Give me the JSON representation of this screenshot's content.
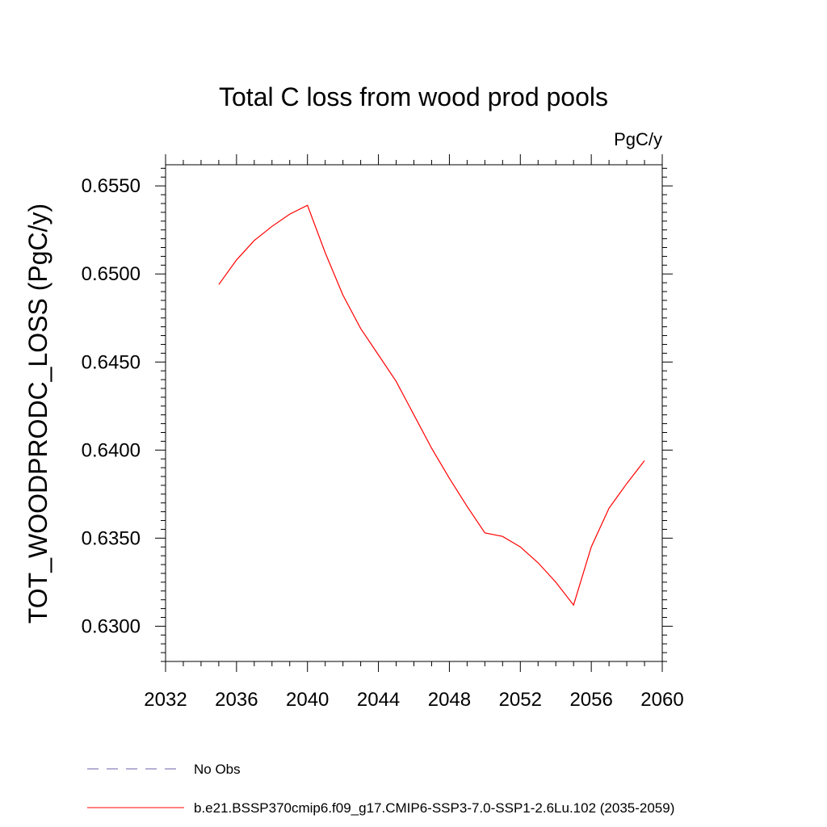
{
  "chart_data": {
    "type": "line",
    "title": "Total C loss from wood prod pools",
    "units_label": "PgC/y",
    "ylabel": "TOT_WOODPRODC_LOSS  (PgC/y)",
    "xlabel": "",
    "xlim": [
      2032,
      2060
    ],
    "ylim": [
      0.628,
      0.6562
    ],
    "x_ticks": [
      2032,
      2036,
      2040,
      2044,
      2048,
      2052,
      2056,
      2060
    ],
    "y_ticks": [
      0.63,
      0.635,
      0.64,
      0.645,
      0.65,
      0.655
    ],
    "x_tick_labels": [
      "2032",
      "2036",
      "2040",
      "2044",
      "2048",
      "2052",
      "2056",
      "2060"
    ],
    "y_tick_labels": [
      "0.6300",
      "0.6350",
      "0.6400",
      "0.6450",
      "0.6500",
      "0.6550"
    ],
    "grid": false,
    "legend_position": "bottom",
    "series": [
      {
        "name": "b.e21.BSSP370cmip6.f09_g17.CMIP6-SSP3-7.0-SSP1-2.6Lu.102 (2035-2059)",
        "color": "#ff0000",
        "style": "solid",
        "x": [
          2035,
          2036,
          2037,
          2038,
          2039,
          2040,
          2041,
          2042,
          2043,
          2044,
          2045,
          2046,
          2047,
          2048,
          2049,
          2050,
          2051,
          2052,
          2053,
          2054,
          2055,
          2056,
          2057,
          2058,
          2059
        ],
        "y": [
          0.6494,
          0.6508,
          0.6519,
          0.6527,
          0.6534,
          0.6539,
          0.6512,
          0.6488,
          0.6469,
          0.6454,
          0.6439,
          0.642,
          0.6401,
          0.6384,
          0.6368,
          0.6353,
          0.6351,
          0.6345,
          0.6336,
          0.6325,
          0.6312,
          0.6345,
          0.6367,
          0.6381,
          0.6394
        ]
      }
    ],
    "legend": [
      {
        "label": "No Obs",
        "color": "#6f5fa8",
        "style": "dashed"
      },
      {
        "label": "b.e21.BSSP370cmip6.f09_g17.CMIP6-SSP3-7.0-SSP1-2.6Lu.102 (2035-2059)",
        "color": "#ff0000",
        "style": "solid"
      }
    ]
  }
}
